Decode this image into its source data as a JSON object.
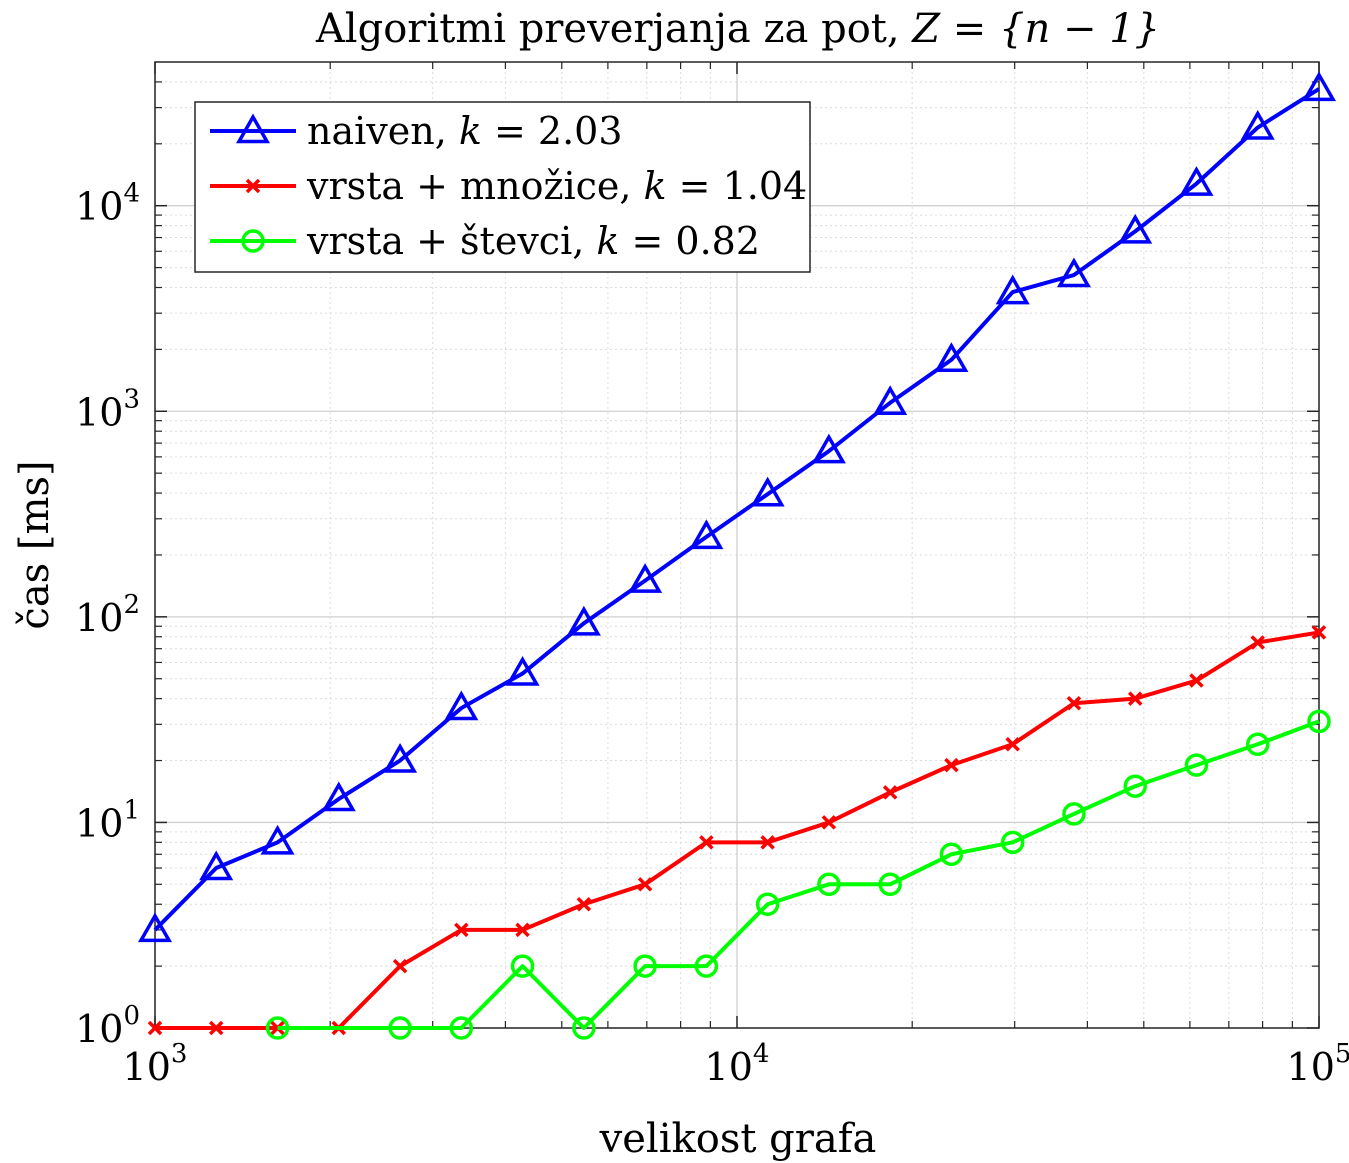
{
  "chart_data": {
    "type": "line",
    "title": "Algoritmi preverjanja za pot, Z = {n − 1}",
    "title_parts": {
      "text": "Algoritmi preverjanja za pot, ",
      "math": "Z = {n − 1}"
    },
    "xlabel": "velikost grafa",
    "ylabel": "čas [ms]",
    "xscale": "log",
    "yscale": "log",
    "xlim": [
      1000,
      100000
    ],
    "ylim": [
      1,
      50000
    ],
    "x_ticks": [
      {
        "value": 1000,
        "base": "10",
        "exp": "3"
      },
      {
        "value": 10000,
        "base": "10",
        "exp": "4"
      },
      {
        "value": 100000,
        "base": "10",
        "exp": "5"
      }
    ],
    "y_ticks": [
      {
        "value": 1,
        "base": "10",
        "exp": "0"
      },
      {
        "value": 10,
        "base": "10",
        "exp": "1"
      },
      {
        "value": 100,
        "base": "10",
        "exp": "2"
      },
      {
        "value": 1000,
        "base": "10",
        "exp": "3"
      },
      {
        "value": 10000,
        "base": "10",
        "exp": "4"
      }
    ],
    "grid": true,
    "minor_grid": true,
    "legend_position": "top-left",
    "series": [
      {
        "name": "naiven, k = 2.03",
        "legend_prefix": "naiven, ",
        "legend_k": "k",
        "legend_value": " = 2.03",
        "color": "#0000ff",
        "marker": "triangle",
        "x": [
          1000,
          1274,
          1624,
          2069,
          2637,
          3360,
          4281,
          5456,
          6952,
          8859,
          11288,
          14384,
          18330,
          23357,
          29764,
          37927,
          48329,
          61585,
          78476,
          100000
        ],
        "y": [
          3,
          6,
          8,
          13,
          20,
          36,
          53,
          93,
          150,
          245,
          395,
          640,
          1100,
          1780,
          3800,
          4600,
          7500,
          12800,
          24000,
          37000
        ]
      },
      {
        "name": "vrsta + množice, k = 1.04",
        "legend_prefix": "vrsta + množice, ",
        "legend_k": "k",
        "legend_value": " = 1.04",
        "color": "#ff0000",
        "marker": "x",
        "x": [
          1000,
          1274,
          1624,
          2069,
          2637,
          3360,
          4281,
          5456,
          6952,
          8859,
          11288,
          14384,
          18330,
          23357,
          29764,
          37927,
          48329,
          61585,
          78476,
          100000
        ],
        "y": [
          1,
          1,
          1,
          1,
          2,
          3,
          3,
          4,
          5,
          8,
          8,
          10,
          14,
          19,
          24,
          38,
          40,
          49,
          75,
          84
        ]
      },
      {
        "name": "vrsta + števci, k = 0.82",
        "legend_prefix": "vrsta + števci, ",
        "legend_k": "k",
        "legend_value": " = 0.82",
        "color": "#00ff00",
        "marker": "circle",
        "x": [
          1624,
          2637,
          3360,
          4281,
          5456,
          6952,
          8859,
          11288,
          14384,
          18330,
          23357,
          29764,
          37927,
          48329,
          61585,
          78476,
          100000
        ],
        "y": [
          1,
          1,
          1,
          2,
          1,
          2,
          2,
          4,
          5,
          5,
          7,
          8,
          11,
          15,
          19,
          24,
          31
        ]
      }
    ]
  }
}
